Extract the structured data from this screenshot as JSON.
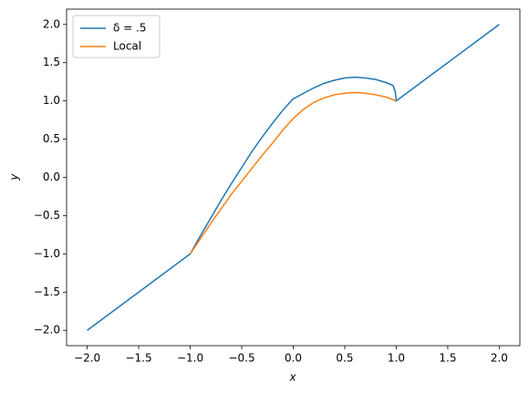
{
  "chart_data": {
    "type": "line",
    "xlabel": "x",
    "ylabel": "y",
    "xlim": [
      -2.2,
      2.2
    ],
    "ylim": [
      -2.2,
      2.2
    ],
    "xticks": [
      {
        "value": -2,
        "label": "−2.0"
      },
      {
        "value": -1.5,
        "label": "−1.5"
      },
      {
        "value": -1,
        "label": "−1.0"
      },
      {
        "value": -0.5,
        "label": "−0.5"
      },
      {
        "value": 0,
        "label": "0.0"
      },
      {
        "value": 0.5,
        "label": "0.5"
      },
      {
        "value": 1,
        "label": "1.0"
      },
      {
        "value": 1.5,
        "label": "1.5"
      },
      {
        "value": 2,
        "label": "2.0"
      }
    ],
    "yticks": [
      {
        "value": -2,
        "label": "−2.0"
      },
      {
        "value": -1.5,
        "label": "−1.5"
      },
      {
        "value": -1,
        "label": "−1.0"
      },
      {
        "value": -0.5,
        "label": "−0.5"
      },
      {
        "value": 0,
        "label": "0.0"
      },
      {
        "value": 0.5,
        "label": "0.5"
      },
      {
        "value": 1,
        "label": "1.0"
      },
      {
        "value": 1.5,
        "label": "1.5"
      },
      {
        "value": 2,
        "label": "2.0"
      }
    ],
    "legend": "upper left",
    "series": [
      {
        "name": "δ = .5",
        "color": "#1f77b4",
        "x": [
          -2,
          -1,
          -0.9,
          -0.8,
          -0.7,
          -0.6,
          -0.5,
          -0.4,
          -0.3,
          -0.2,
          -0.1,
          0,
          0.02,
          0.1,
          0.2,
          0.3,
          0.4,
          0.5,
          0.6,
          0.7,
          0.8,
          0.9,
          0.97,
          0.99,
          1,
          2
        ],
        "values": [
          -2,
          -1,
          -0.76,
          -0.53,
          -0.3,
          -0.08,
          0.13,
          0.34,
          0.53,
          0.71,
          0.88,
          1.03,
          1.04,
          1.1,
          1.17,
          1.23,
          1.27,
          1.3,
          1.31,
          1.3,
          1.28,
          1.24,
          1.2,
          1.12,
          1,
          2
        ]
      },
      {
        "name": "Local",
        "color": "#ff7f0e",
        "x": [
          -1,
          -0.9,
          -0.8,
          -0.7,
          -0.6,
          -0.5,
          -0.4,
          -0.3,
          -0.2,
          -0.1,
          0,
          0.1,
          0.2,
          0.3,
          0.4,
          0.5,
          0.6,
          0.7,
          0.8,
          0.9,
          1
        ],
        "values": [
          -1,
          -0.8,
          -0.6,
          -0.41,
          -0.22,
          -0.05,
          0.12,
          0.29,
          0.45,
          0.62,
          0.77,
          0.89,
          0.98,
          1.04,
          1.08,
          1.1,
          1.11,
          1.1,
          1.08,
          1.05,
          1
        ]
      }
    ]
  }
}
